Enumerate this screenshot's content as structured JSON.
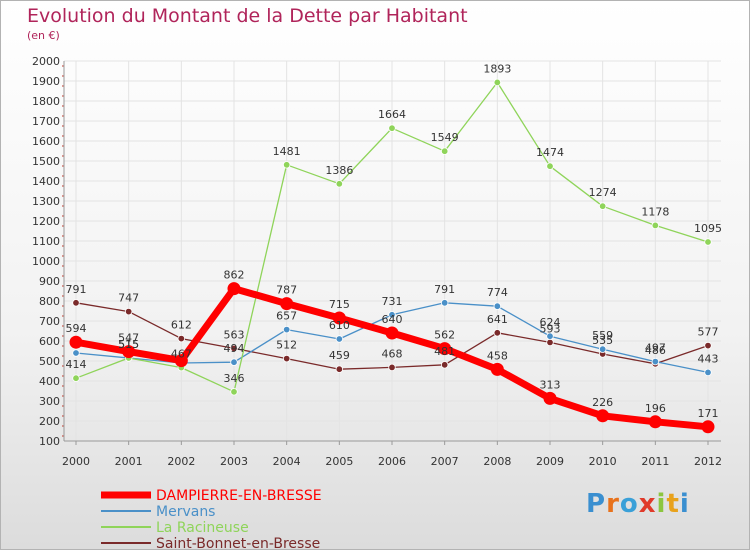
{
  "title": "Evolution du Montant de la Dette par Habitant",
  "subtitle": "(en €)",
  "logo": {
    "text": "Proxiti",
    "letters": [
      {
        "ch": "P",
        "color": "#3a8fd0"
      },
      {
        "ch": "r",
        "color": "#e8721c"
      },
      {
        "ch": "o",
        "color": "#3aa0d8"
      },
      {
        "ch": "x",
        "color": "#e03a2a"
      },
      {
        "ch": "i",
        "color": "#8cc63f"
      },
      {
        "ch": "t",
        "color": "#e8a21c"
      },
      {
        "ch": "i",
        "color": "#3a8fd0"
      }
    ]
  },
  "chart_data": {
    "type": "line",
    "title": "Evolution du Montant de la Dette par Habitant",
    "ylabel": "(en €)",
    "x": [
      "2000",
      "2001",
      "2002",
      "2003",
      "2004",
      "2005",
      "2006",
      "2007",
      "2008",
      "2009",
      "2010",
      "2011",
      "2012"
    ],
    "ylim": [
      100,
      2000
    ],
    "yticks": [
      100,
      200,
      300,
      400,
      500,
      600,
      700,
      800,
      900,
      1000,
      1100,
      1200,
      1300,
      1400,
      1500,
      1600,
      1700,
      1800,
      1900,
      2000
    ],
    "grid": true,
    "legend": "bottom-left",
    "series": [
      {
        "name": "DAMPIERRE-EN-BRESSE",
        "color": "#ff0000",
        "values": [
          594,
          547,
          502,
          862,
          787,
          715,
          640,
          562,
          458,
          313,
          226,
          196,
          171
        ],
        "labels": [
          "594",
          "547",
          "",
          "862",
          "787",
          "715",
          "640",
          "562",
          "458",
          "313",
          "226",
          "196",
          "171"
        ]
      },
      {
        "name": "Mervans",
        "color": "#4a90c8",
        "values": [
          540,
          515,
          490,
          494,
          657,
          610,
          731,
          791,
          774,
          624,
          559,
          497,
          443
        ],
        "labels": [
          "",
          "515",
          "",
          "494",
          "657",
          "610",
          "731",
          "791",
          "774",
          "624",
          "559",
          "497",
          "443"
        ]
      },
      {
        "name": "La Racineuse",
        "color": "#8fd45a",
        "values": [
          414,
          515,
          467,
          346,
          1481,
          1386,
          1664,
          1549,
          1893,
          1474,
          1274,
          1178,
          1095
        ],
        "labels": [
          "414",
          "515",
          "467",
          "346",
          "1481",
          "1386",
          "1664",
          "1549",
          "1893",
          "1474",
          "1274",
          "1178",
          "1095"
        ]
      },
      {
        "name": "Saint-Bonnet-en-Bresse",
        "color": "#7a2a2a",
        "values": [
          791,
          747,
          612,
          563,
          512,
          459,
          468,
          481,
          641,
          593,
          535,
          486,
          577
        ],
        "labels": [
          "791",
          "747",
          "612",
          "563",
          "512",
          "459",
          "468",
          "481",
          "641",
          "593",
          "535",
          "486",
          "577"
        ]
      }
    ]
  }
}
